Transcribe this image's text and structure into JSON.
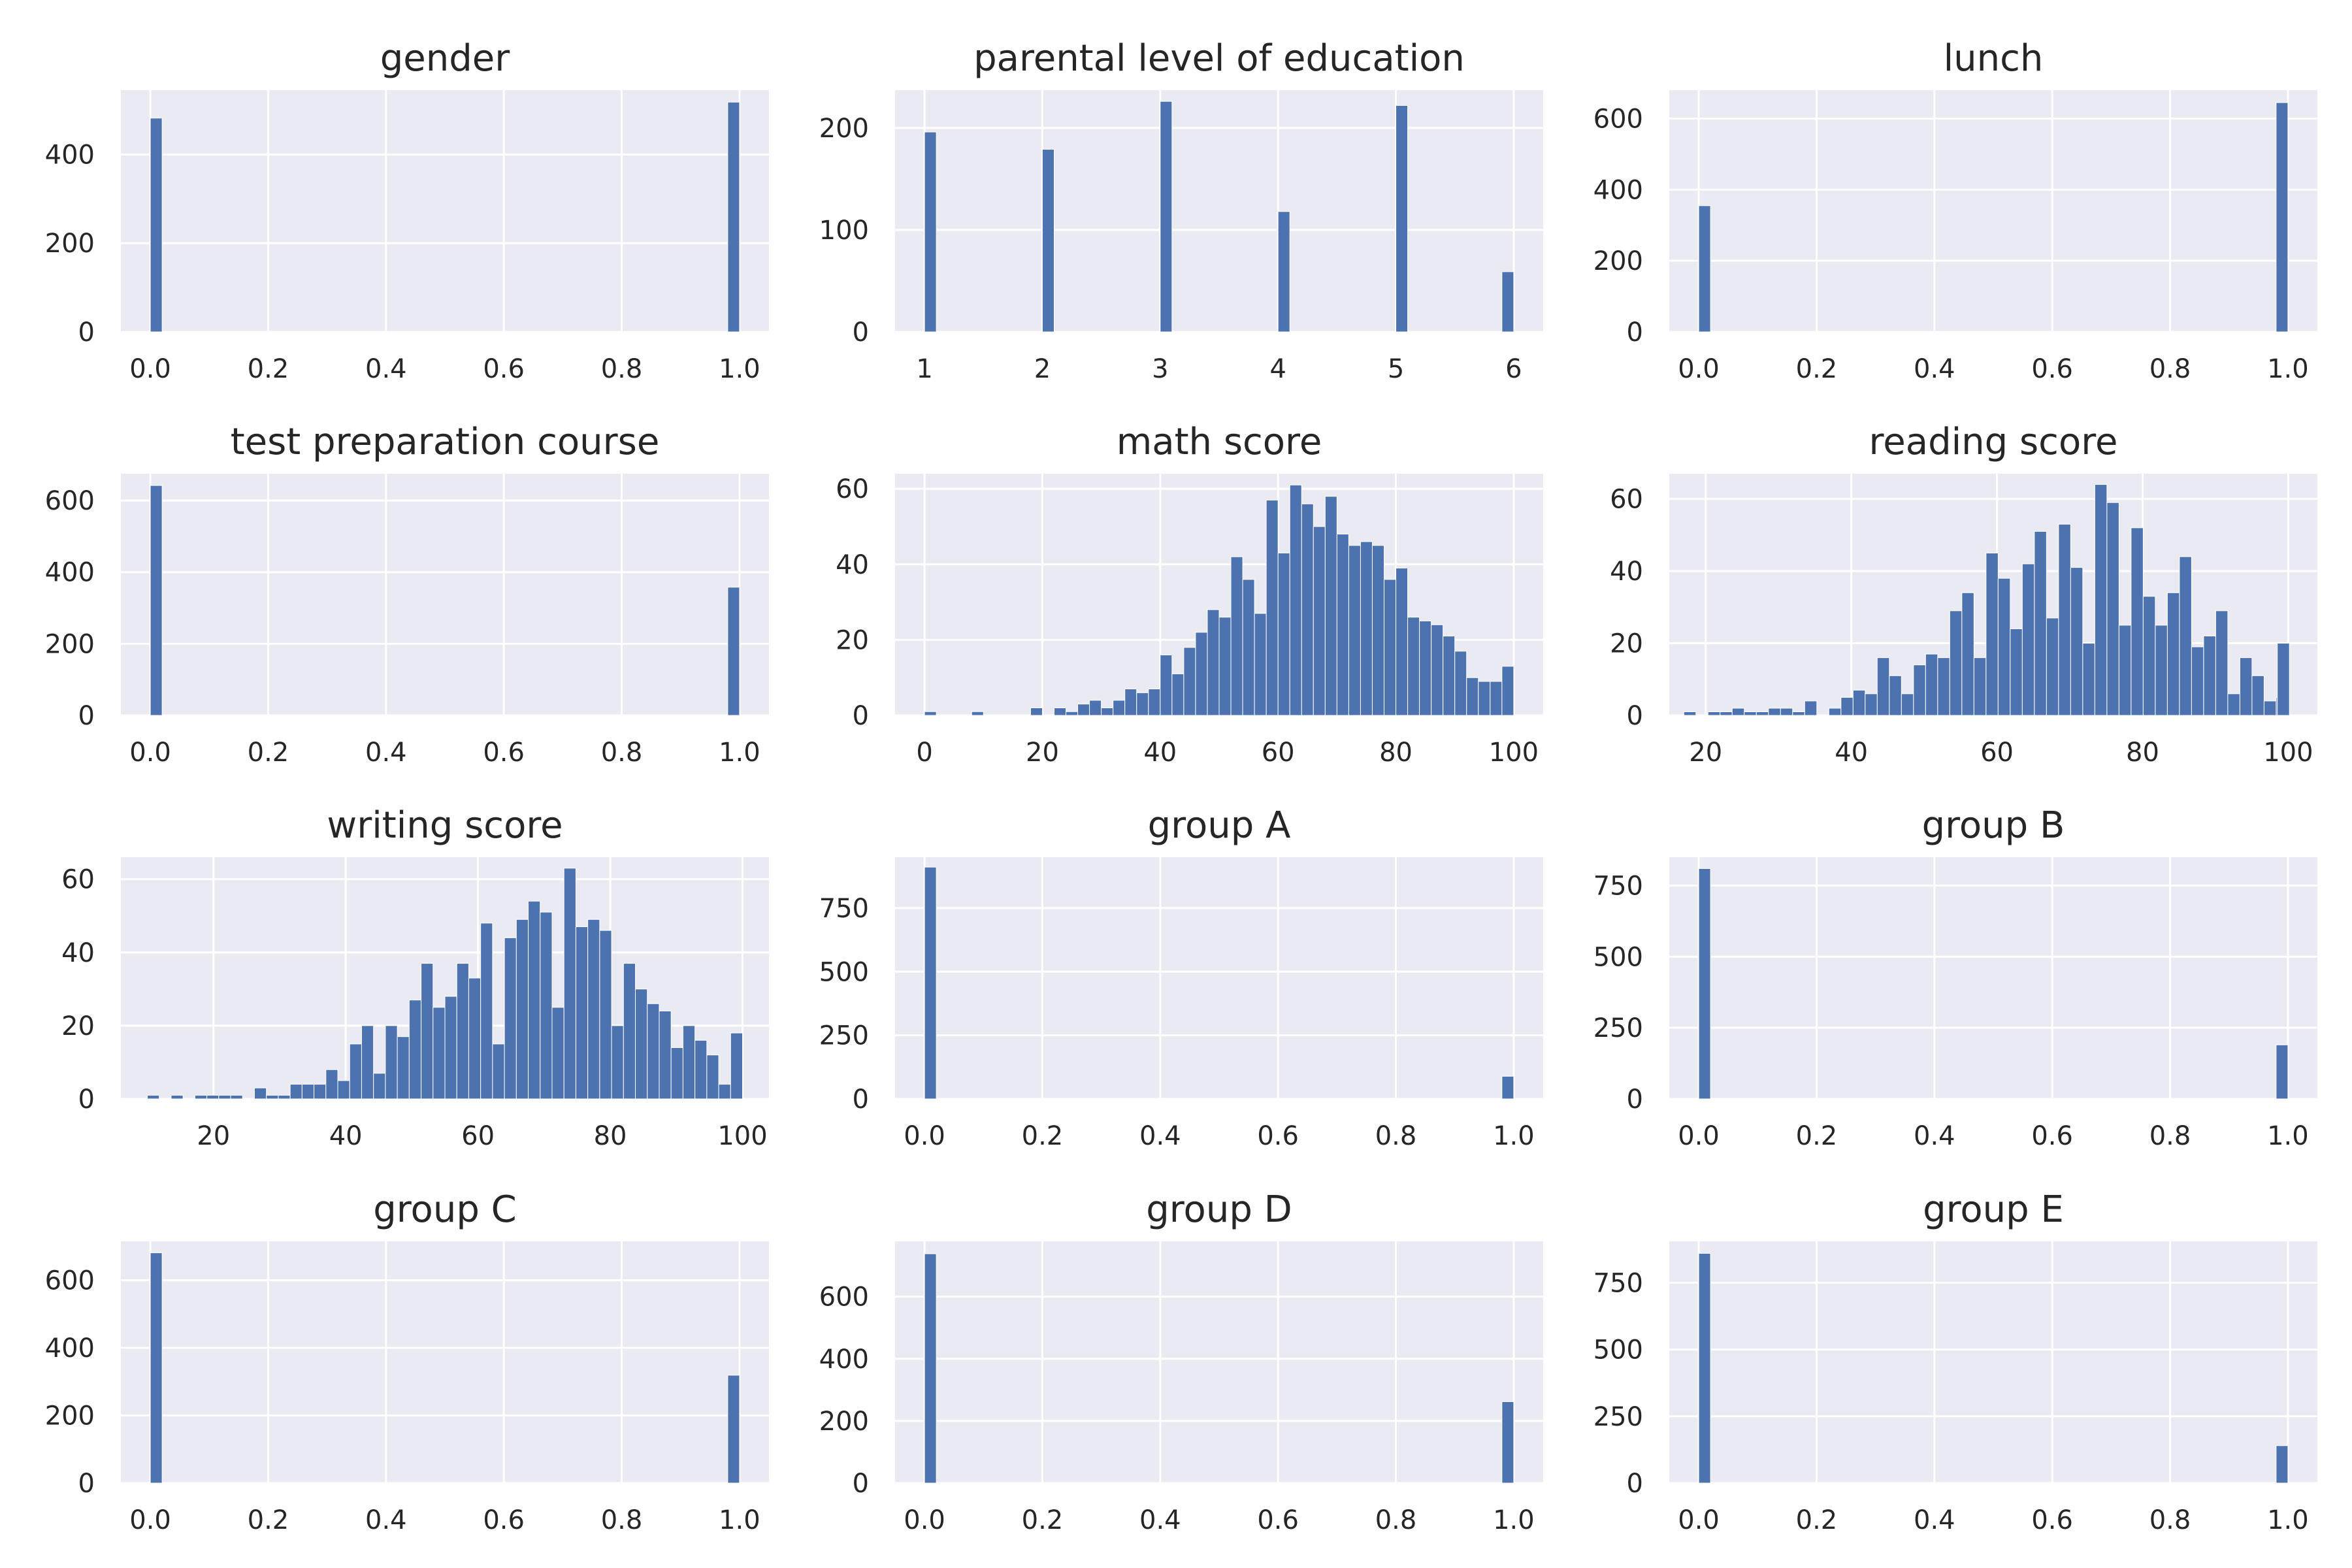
{
  "chart_data": [
    {
      "type": "bar",
      "title": "gender",
      "bar_color": "#4c72b0",
      "background": "#eaeaf2",
      "grid": true,
      "xlim": [
        -0.05,
        1.05
      ],
      "ylim": [
        0,
        545
      ],
      "xticks": [
        0,
        0.2,
        0.4,
        0.6,
        0.8,
        1
      ],
      "xtick_labels": [
        "0.0",
        "0.2",
        "0.4",
        "0.6",
        "0.8",
        "1.0"
      ],
      "yticks": [
        0,
        200,
        400
      ],
      "ytick_labels": [
        "0",
        "200",
        "400"
      ],
      "bin_width": 0.02,
      "bins": [
        [
          0,
          482
        ],
        [
          0.98,
          518
        ]
      ]
    },
    {
      "type": "bar",
      "title": "parental level of education",
      "bar_color": "#4c72b0",
      "background": "#eaeaf2",
      "grid": true,
      "xlim": [
        0.75,
        6.25
      ],
      "ylim": [
        0,
        237
      ],
      "xticks": [
        1,
        2,
        3,
        4,
        5,
        6
      ],
      "xtick_labels": [
        "1",
        "2",
        "3",
        "4",
        "5",
        "6"
      ],
      "yticks": [
        0,
        100,
        200
      ],
      "ytick_labels": [
        "0",
        "100",
        "200"
      ],
      "bin_width": 0.1,
      "bins": [
        [
          1,
          196
        ],
        [
          2,
          179
        ],
        [
          3,
          226
        ],
        [
          4,
          118
        ],
        [
          5,
          222
        ],
        [
          5.9,
          59
        ]
      ]
    },
    {
      "type": "bar",
      "title": "lunch",
      "bar_color": "#4c72b0",
      "background": "#eaeaf2",
      "grid": true,
      "xlim": [
        -0.05,
        1.05
      ],
      "ylim": [
        0,
        680
      ],
      "xticks": [
        0,
        0.2,
        0.4,
        0.6,
        0.8,
        1
      ],
      "xtick_labels": [
        "0.0",
        "0.2",
        "0.4",
        "0.6",
        "0.8",
        "1.0"
      ],
      "yticks": [
        0,
        200,
        400,
        600
      ],
      "ytick_labels": [
        "0",
        "200",
        "400",
        "600"
      ],
      "bin_width": 0.02,
      "bins": [
        [
          0,
          355
        ],
        [
          0.98,
          645
        ]
      ]
    },
    {
      "type": "bar",
      "title": "test preparation course",
      "bar_color": "#4c72b0",
      "background": "#eaeaf2",
      "grid": true,
      "xlim": [
        -0.05,
        1.05
      ],
      "ylim": [
        0,
        675
      ],
      "xticks": [
        0,
        0.2,
        0.4,
        0.6,
        0.8,
        1
      ],
      "xtick_labels": [
        "0.0",
        "0.2",
        "0.4",
        "0.6",
        "0.8",
        "1.0"
      ],
      "yticks": [
        0,
        200,
        400,
        600
      ],
      "ytick_labels": [
        "0",
        "200",
        "400",
        "600"
      ],
      "bin_width": 0.02,
      "bins": [
        [
          0,
          642
        ],
        [
          0.98,
          358
        ]
      ]
    },
    {
      "type": "bar",
      "title": "math score",
      "bar_color": "#4c72b0",
      "background": "#eaeaf2",
      "grid": true,
      "xlim": [
        -5,
        105
      ],
      "ylim": [
        0,
        64
      ],
      "xticks": [
        0,
        20,
        40,
        60,
        80,
        100
      ],
      "xtick_labels": [
        "0",
        "20",
        "40",
        "60",
        "80",
        "100"
      ],
      "yticks": [
        0,
        20,
        40,
        60
      ],
      "ytick_labels": [
        "0",
        "20",
        "40",
        "60"
      ],
      "bin_width": 2,
      "bins": [
        [
          0,
          1
        ],
        [
          8,
          1
        ],
        [
          18,
          2
        ],
        [
          22,
          2
        ],
        [
          24,
          1
        ],
        [
          26,
          3
        ],
        [
          28,
          4
        ],
        [
          30,
          2
        ],
        [
          32,
          4
        ],
        [
          34,
          7
        ],
        [
          36,
          6
        ],
        [
          38,
          7
        ],
        [
          40,
          16
        ],
        [
          42,
          11
        ],
        [
          44,
          18
        ],
        [
          46,
          22
        ],
        [
          48,
          28
        ],
        [
          50,
          26
        ],
        [
          52,
          42
        ],
        [
          54,
          36
        ],
        [
          56,
          27
        ],
        [
          58,
          57
        ],
        [
          60,
          43
        ],
        [
          62,
          61
        ],
        [
          64,
          56
        ],
        [
          66,
          50
        ],
        [
          68,
          58
        ],
        [
          70,
          48
        ],
        [
          72,
          45
        ],
        [
          74,
          46
        ],
        [
          76,
          45
        ],
        [
          78,
          36
        ],
        [
          80,
          39
        ],
        [
          82,
          26
        ],
        [
          84,
          25
        ],
        [
          86,
          24
        ],
        [
          88,
          21
        ],
        [
          90,
          17
        ],
        [
          92,
          10
        ],
        [
          94,
          9
        ],
        [
          96,
          9
        ],
        [
          98,
          13
        ]
      ]
    },
    {
      "type": "bar",
      "title": "reading score",
      "bar_color": "#4c72b0",
      "background": "#eaeaf2",
      "grid": true,
      "xlim": [
        15,
        104
      ],
      "ylim": [
        0,
        67
      ],
      "xticks": [
        20,
        40,
        60,
        80,
        100
      ],
      "xtick_labels": [
        "20",
        "40",
        "60",
        "80",
        "100"
      ],
      "yticks": [
        0,
        20,
        40,
        60
      ],
      "ytick_labels": [
        "0",
        "20",
        "40",
        "60"
      ],
      "bin_width": 1.66,
      "bins": [
        [
          17,
          1
        ],
        [
          20.32,
          1
        ],
        [
          21.98,
          1
        ],
        [
          23.64,
          2
        ],
        [
          25.3,
          1
        ],
        [
          26.96,
          1
        ],
        [
          28.62,
          2
        ],
        [
          30.28,
          2
        ],
        [
          31.94,
          1
        ],
        [
          33.6,
          4
        ],
        [
          36.92,
          2
        ],
        [
          38.58,
          5
        ],
        [
          40.24,
          7
        ],
        [
          41.9,
          6
        ],
        [
          43.56,
          16
        ],
        [
          45.22,
          11
        ],
        [
          46.88,
          6
        ],
        [
          48.54,
          14
        ],
        [
          50.2,
          17
        ],
        [
          51.86,
          16
        ],
        [
          53.52,
          29
        ],
        [
          55.18,
          34
        ],
        [
          56.84,
          16
        ],
        [
          58.5,
          45
        ],
        [
          60.16,
          38
        ],
        [
          61.82,
          24
        ],
        [
          63.48,
          42
        ],
        [
          65.14,
          51
        ],
        [
          66.8,
          27
        ],
        [
          68.46,
          53
        ],
        [
          70.12,
          41
        ],
        [
          71.78,
          20
        ],
        [
          73.44,
          64
        ],
        [
          75.1,
          59
        ],
        [
          76.76,
          25
        ],
        [
          78.42,
          52
        ],
        [
          80.08,
          33
        ],
        [
          81.74,
          25
        ],
        [
          83.4,
          34
        ],
        [
          85.06,
          44
        ],
        [
          86.72,
          19
        ],
        [
          88.38,
          22
        ],
        [
          90.04,
          29
        ],
        [
          91.7,
          6
        ],
        [
          93.36,
          16
        ],
        [
          95.02,
          11
        ],
        [
          96.68,
          4
        ],
        [
          98.34,
          5
        ],
        [
          98.5,
          20
        ]
      ]
    },
    {
      "type": "bar",
      "title": "writing score",
      "bar_color": "#4c72b0",
      "background": "#eaeaf2",
      "grid": true,
      "xlim": [
        6,
        104
      ],
      "ylim": [
        0,
        66
      ],
      "xticks": [
        20,
        40,
        60,
        80,
        100
      ],
      "xtick_labels": [
        "20",
        "40",
        "60",
        "80",
        "100"
      ],
      "yticks": [
        0,
        20,
        40,
        60
      ],
      "ytick_labels": [
        "0",
        "20",
        "40",
        "60"
      ],
      "bin_width": 1.8,
      "bins": [
        [
          10,
          1
        ],
        [
          13.6,
          1
        ],
        [
          17.2,
          1
        ],
        [
          19,
          1
        ],
        [
          20.8,
          1
        ],
        [
          22.6,
          1
        ],
        [
          26.2,
          3
        ],
        [
          28,
          1
        ],
        [
          29.8,
          1
        ],
        [
          31.6,
          4
        ],
        [
          33.4,
          4
        ],
        [
          35.2,
          4
        ],
        [
          37,
          8
        ],
        [
          38.8,
          5
        ],
        [
          40.6,
          15
        ],
        [
          42.4,
          20
        ],
        [
          44.2,
          7
        ],
        [
          46,
          20
        ],
        [
          47.8,
          17
        ],
        [
          49.6,
          27
        ],
        [
          51.4,
          37
        ],
        [
          53.2,
          25
        ],
        [
          55,
          28
        ],
        [
          56.8,
          37
        ],
        [
          58.6,
          33
        ],
        [
          60.4,
          48
        ],
        [
          62.2,
          15
        ],
        [
          64,
          44
        ],
        [
          65.8,
          49
        ],
        [
          67.6,
          54
        ],
        [
          69.4,
          51
        ],
        [
          71.2,
          25
        ],
        [
          73,
          63
        ],
        [
          74.8,
          47
        ],
        [
          76.6,
          49
        ],
        [
          78.4,
          46
        ],
        [
          80.2,
          20
        ],
        [
          82,
          37
        ],
        [
          83.8,
          30
        ],
        [
          85.6,
          26
        ],
        [
          87.4,
          24
        ],
        [
          89.2,
          14
        ],
        [
          91,
          20
        ],
        [
          92.8,
          16
        ],
        [
          94.6,
          12
        ],
        [
          96.4,
          4
        ],
        [
          98.2,
          18
        ]
      ]
    },
    {
      "type": "bar",
      "title": "group A",
      "bar_color": "#4c72b0",
      "background": "#eaeaf2",
      "grid": true,
      "xlim": [
        -0.05,
        1.05
      ],
      "ylim": [
        0,
        950
      ],
      "xticks": [
        0,
        0.2,
        0.4,
        0.6,
        0.8,
        1
      ],
      "xtick_labels": [
        "0.0",
        "0.2",
        "0.4",
        "0.6",
        "0.8",
        "1.0"
      ],
      "yticks": [
        0,
        250,
        500,
        750
      ],
      "ytick_labels": [
        "0",
        "250",
        "500",
        "750"
      ],
      "bin_width": 0.02,
      "bins": [
        [
          0,
          911
        ],
        [
          0.98,
          89
        ]
      ]
    },
    {
      "type": "bar",
      "title": "group B",
      "bar_color": "#4c72b0",
      "background": "#eaeaf2",
      "grid": true,
      "xlim": [
        -0.05,
        1.05
      ],
      "ylim": [
        0,
        850
      ],
      "xticks": [
        0,
        0.2,
        0.4,
        0.6,
        0.8,
        1
      ],
      "xtick_labels": [
        "0.0",
        "0.2",
        "0.4",
        "0.6",
        "0.8",
        "1.0"
      ],
      "yticks": [
        0,
        250,
        500,
        750
      ],
      "ytick_labels": [
        "0",
        "250",
        "500",
        "750"
      ],
      "bin_width": 0.02,
      "bins": [
        [
          0,
          810
        ],
        [
          0.98,
          190
        ]
      ]
    },
    {
      "type": "bar",
      "title": "group C",
      "bar_color": "#4c72b0",
      "background": "#eaeaf2",
      "grid": true,
      "xlim": [
        -0.05,
        1.05
      ],
      "ylim": [
        0,
        715
      ],
      "xticks": [
        0,
        0.2,
        0.4,
        0.6,
        0.8,
        1
      ],
      "xtick_labels": [
        "0.0",
        "0.2",
        "0.4",
        "0.6",
        "0.8",
        "1.0"
      ],
      "yticks": [
        0,
        200,
        400,
        600
      ],
      "ytick_labels": [
        "0",
        "200",
        "400",
        "600"
      ],
      "bin_width": 0.02,
      "bins": [
        [
          0,
          681
        ],
        [
          0.98,
          319
        ]
      ]
    },
    {
      "type": "bar",
      "title": "group D",
      "bar_color": "#4c72b0",
      "background": "#eaeaf2",
      "grid": true,
      "xlim": [
        -0.05,
        1.05
      ],
      "ylim": [
        0,
        778
      ],
      "xticks": [
        0,
        0.2,
        0.4,
        0.6,
        0.8,
        1
      ],
      "xtick_labels": [
        "0.0",
        "0.2",
        "0.4",
        "0.6",
        "0.8",
        "1.0"
      ],
      "yticks": [
        0,
        200,
        400,
        600
      ],
      "ytick_labels": [
        "0",
        "200",
        "400",
        "600"
      ],
      "bin_width": 0.02,
      "bins": [
        [
          0,
          738
        ],
        [
          0.98,
          262
        ]
      ]
    },
    {
      "type": "bar",
      "title": "group E",
      "bar_color": "#4c72b0",
      "background": "#eaeaf2",
      "grid": true,
      "xlim": [
        -0.05,
        1.05
      ],
      "ylim": [
        0,
        905
      ],
      "xticks": [
        0,
        0.2,
        0.4,
        0.6,
        0.8,
        1
      ],
      "xtick_labels": [
        "0.0",
        "0.2",
        "0.4",
        "0.6",
        "0.8",
        "1.0"
      ],
      "yticks": [
        0,
        250,
        500,
        750
      ],
      "ytick_labels": [
        "0",
        "250",
        "500",
        "750"
      ],
      "bin_width": 0.02,
      "bins": [
        [
          0,
          860
        ],
        [
          0.98,
          140
        ]
      ]
    }
  ]
}
